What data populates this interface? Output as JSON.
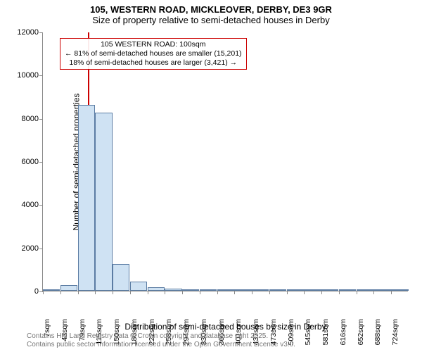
{
  "title": {
    "line1": "105, WESTERN ROAD, MICKLEOVER, DERBY, DE3 9GR",
    "line2": "Size of property relative to semi-detached houses in Derby"
  },
  "chart": {
    "type": "histogram",
    "ylabel": "Number of semi-detached properties",
    "xlabel": "Distribution of semi-detached houses by size in Derby",
    "ylim": [
      0,
      12000
    ],
    "ytick_step": 2000,
    "yticks": [
      0,
      2000,
      4000,
      6000,
      8000,
      10000,
      12000
    ],
    "xtick_labels": [
      "7sqm",
      "43sqm",
      "79sqm",
      "115sqm",
      "150sqm",
      "186sqm",
      "222sqm",
      "258sqm",
      "294sqm",
      "330sqm",
      "366sqm",
      "401sqm",
      "437sqm",
      "473sqm",
      "509sqm",
      "545sqm",
      "581sqm",
      "616sqm",
      "652sqm",
      "688sqm",
      "724sqm"
    ],
    "xtick_count": 21,
    "bar_fill": "#cfe2f3",
    "bar_border": "#5b7ca3",
    "values": [
      30,
      260,
      8600,
      8250,
      1250,
      420,
      170,
      110,
      80,
      35,
      30,
      25,
      20,
      15,
      10,
      10,
      10,
      8,
      8,
      6,
      5
    ],
    "background_color": "#ffffff",
    "axis_color": "#888888",
    "label_fontsize": 12,
    "tick_fontsize": 11
  },
  "marker": {
    "position_sqm": 100,
    "color": "#cc0000",
    "annotation": {
      "line1": "105 WESTERN ROAD: 100sqm",
      "line2": "← 81% of semi-detached houses are smaller (15,201)",
      "line3": "18% of semi-detached houses are larger (3,421) →",
      "border_color": "#cc0000"
    }
  },
  "footer": {
    "line1": "Contains HM Land Registry data © Crown copyright and database right 2025.",
    "line2": "Contains public sector information licensed under the Open Government Licence v3.0."
  }
}
